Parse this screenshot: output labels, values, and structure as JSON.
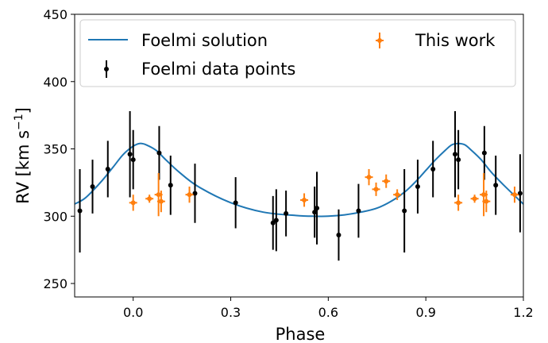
{
  "chart_data": {
    "type": "scatter",
    "xlabel": "Phase",
    "ylabel": "RV [km s",
    "ylabel_sup": "−1",
    "ylabel_end": "]",
    "xlim": [
      -0.18,
      1.2
    ],
    "ylim": [
      240,
      450
    ],
    "xticks": [
      0.0,
      0.3,
      0.6,
      0.9,
      1.2
    ],
    "xtick_labels": [
      "0.0",
      "0.3",
      "0.6",
      "0.9",
      "1.2"
    ],
    "yticks": [
      250,
      300,
      350,
      400,
      450
    ],
    "ytick_labels": [
      "250",
      "300",
      "350",
      "400",
      "450"
    ],
    "grid": false,
    "legend_position": "top",
    "legend": {
      "solution": "Foelmi solution",
      "data": "Foelmi data points",
      "thiswork": "This work"
    },
    "colors": {
      "solution": "#1f77b4",
      "data": "#000000",
      "thiswork": "#ff7f0e"
    },
    "series": [
      {
        "name": "Foelmi solution",
        "kind": "line",
        "x": [
          -0.18,
          -0.15,
          -0.12,
          -0.09,
          -0.06,
          -0.03,
          0.0,
          0.02,
          0.04,
          0.07,
          0.1,
          0.14,
          0.2,
          0.3,
          0.4,
          0.5,
          0.55,
          0.6,
          0.65,
          0.7,
          0.75,
          0.8,
          0.84,
          0.87,
          0.9,
          0.93,
          0.96,
          0.98,
          1.0,
          1.02,
          1.04,
          1.07,
          1.1,
          1.14,
          1.2
        ],
        "y": [
          309,
          313,
          320,
          328,
          337,
          346,
          352,
          354,
          353,
          349,
          342,
          333,
          322,
          310,
          303,
          300.5,
          300,
          300,
          301,
          303,
          306,
          312,
          319,
          326,
          334,
          342,
          349,
          353,
          354,
          353,
          349,
          342,
          333,
          323,
          309
        ]
      },
      {
        "name": "Foelmi data points",
        "kind": "errorbar",
        "points": [
          {
            "x": -0.164,
            "y": 304,
            "err": 31
          },
          {
            "x": -0.125,
            "y": 322,
            "err": 20
          },
          {
            "x": -0.078,
            "y": 335,
            "err": 21
          },
          {
            "x": -0.01,
            "y": 346,
            "err": 32
          },
          {
            "x": 0.0,
            "y": 342,
            "err": 22
          },
          {
            "x": 0.08,
            "y": 347,
            "err": 20
          },
          {
            "x": 0.115,
            "y": 323,
            "err": 22
          },
          {
            "x": 0.19,
            "y": 317,
            "err": 22
          },
          {
            "x": 0.315,
            "y": 310,
            "err": 19
          },
          {
            "x": 0.43,
            "y": 295,
            "err": 20
          },
          {
            "x": 0.44,
            "y": 297,
            "err": 23
          },
          {
            "x": 0.47,
            "y": 302,
            "err": 17
          },
          {
            "x": 0.558,
            "y": 303,
            "err": 19
          },
          {
            "x": 0.565,
            "y": 306,
            "err": 27
          },
          {
            "x": 0.632,
            "y": 286,
            "err": 19
          },
          {
            "x": 0.693,
            "y": 304,
            "err": 20
          },
          {
            "x": 0.834,
            "y": 304,
            "err": 31
          },
          {
            "x": 0.875,
            "y": 322,
            "err": 20
          },
          {
            "x": 0.922,
            "y": 335,
            "err": 21
          },
          {
            "x": 0.99,
            "y": 346,
            "err": 32
          },
          {
            "x": 1.0,
            "y": 342,
            "err": 22
          },
          {
            "x": 1.08,
            "y": 347,
            "err": 20
          },
          {
            "x": 1.115,
            "y": 323,
            "err": 22
          },
          {
            "x": 1.19,
            "y": 317,
            "err": 29
          }
        ]
      },
      {
        "name": "This work",
        "kind": "errorbar",
        "points": [
          {
            "x": -0.198,
            "y": 316,
            "err": 4
          },
          {
            "x": 0.0,
            "y": 310,
            "err": 6
          },
          {
            "x": 0.05,
            "y": 313,
            "err": 3
          },
          {
            "x": 0.078,
            "y": 316,
            "err": 16
          },
          {
            "x": 0.086,
            "y": 311,
            "err": 8
          },
          {
            "x": 0.173,
            "y": 316,
            "err": 6
          },
          {
            "x": 0.526,
            "y": 312,
            "err": 5
          },
          {
            "x": 0.725,
            "y": 329,
            "err": 6
          },
          {
            "x": 0.747,
            "y": 320,
            "err": 5
          },
          {
            "x": 0.778,
            "y": 326,
            "err": 5
          },
          {
            "x": 0.812,
            "y": 316,
            "err": 4
          },
          {
            "x": 1.0,
            "y": 310,
            "err": 6
          },
          {
            "x": 1.05,
            "y": 313,
            "err": 3
          },
          {
            "x": 1.078,
            "y": 316,
            "err": 16
          },
          {
            "x": 1.086,
            "y": 311,
            "err": 8
          },
          {
            "x": 1.173,
            "y": 316,
            "err": 6
          }
        ]
      }
    ]
  }
}
